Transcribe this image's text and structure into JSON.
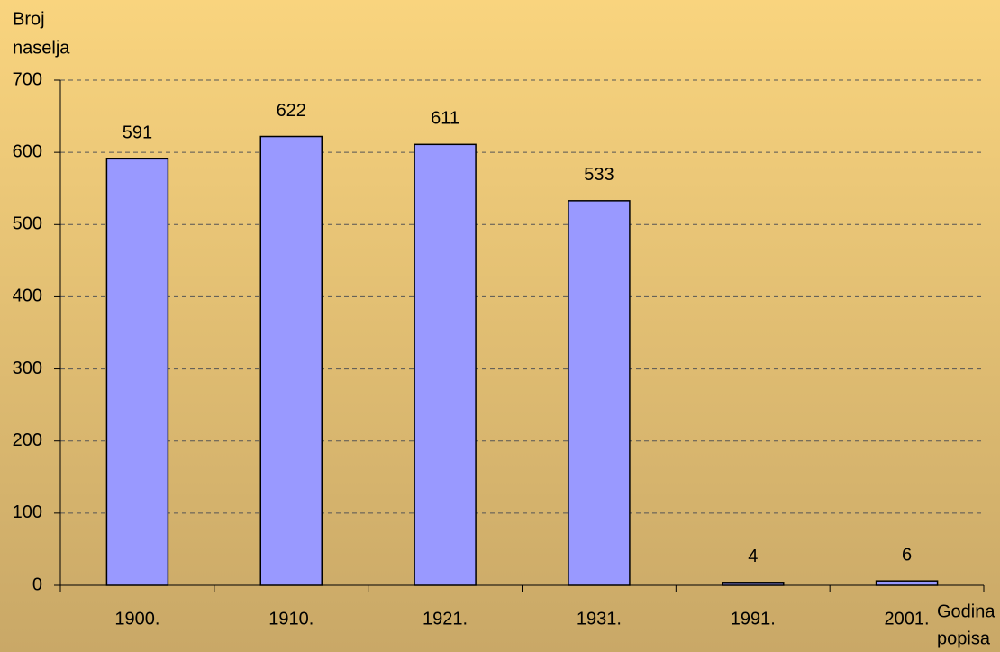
{
  "chart_data": {
    "type": "bar",
    "y_label": [
      "Broj",
      "naselja"
    ],
    "x_label": [
      "Godina",
      "popisa"
    ],
    "categories": [
      "1900.",
      "1910.",
      "1921.",
      "1931.",
      "1991.",
      "2001."
    ],
    "values": [
      591,
      622,
      611,
      533,
      4,
      6
    ],
    "color": "#9999ff",
    "ylim": [
      0,
      700
    ],
    "yticks": [
      0,
      100,
      200,
      300,
      400,
      500,
      600,
      700
    ],
    "grid": true
  }
}
